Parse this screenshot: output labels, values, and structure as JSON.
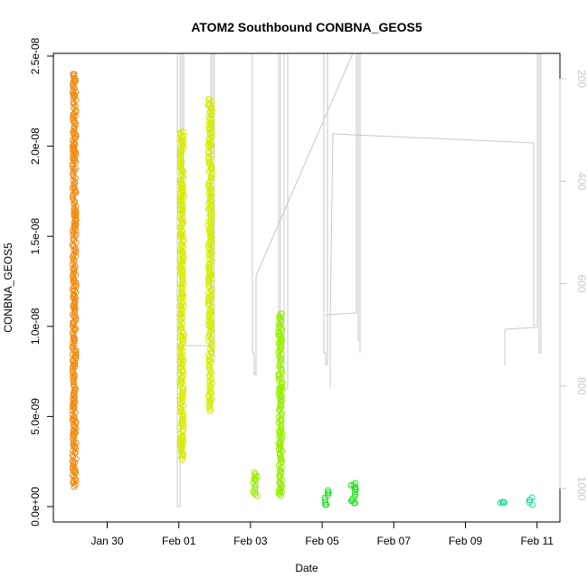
{
  "chart_data": {
    "type": "scatter",
    "title": "ATOM2 Southbound CONBNA_GEOS5",
    "xlabel": "Date",
    "ylabel": "CONBNA_GEOS5",
    "x_ticks": [
      "Jan 30",
      "Feb 01",
      "Feb 03",
      "Feb 05",
      "Feb 07",
      "Feb 09",
      "Feb 11"
    ],
    "y_ticks": [
      "0.0e+00",
      "5.0e-09",
      "1.0e-08",
      "1.5e-08",
      "2.0e-08",
      "2.5e-08"
    ],
    "y_range": [
      0,
      2.5e-08
    ],
    "right_axis_ticks": [
      "200",
      "400",
      "600",
      "800",
      "1000"
    ],
    "right_axis_range": [
      130,
      1040
    ],
    "right_axis_reversed": true,
    "grid": false,
    "series": [
      {
        "color": "#f08a10",
        "clusters": [
          {
            "x": "2016-01-29T02:00",
            "y_min": 1.1e-09,
            "y_max": 2.4e-08
          }
        ]
      },
      {
        "color": "#d6ec00",
        "clusters": [
          {
            "x": "2016-02-01T02:00",
            "y_min": 2.6e-09,
            "y_max": 2.08e-08
          },
          {
            "x": "2016-02-01T21:00",
            "y_min": 5.3e-09,
            "y_max": 2.26e-08
          }
        ]
      },
      {
        "color": "#96ee00",
        "clusters": [
          {
            "x": "2016-02-03T03:00",
            "y_min": 6e-10,
            "y_max": 1.9e-09
          },
          {
            "x": "2016-02-03T20:00",
            "y_min": 6e-10,
            "y_max": 1.07e-08
          }
        ]
      },
      {
        "color": "#22e020",
        "clusters": [
          {
            "x": "2016-02-05T03:00",
            "y_min": 1e-10,
            "y_max": 9e-10
          },
          {
            "x": "2016-02-05T21:00",
            "y_min": 2e-10,
            "y_max": 1.3e-09
          }
        ]
      },
      {
        "color": "#20e0a0",
        "clusters": [
          {
            "x": "2016-02-10T01:00",
            "y_min": 2.5e-10,
            "y_max": 2.5e-10
          },
          {
            "x": "2016-02-10T20:00",
            "y_min": 1e-10,
            "y_max": 5e-10
          }
        ]
      }
    ],
    "altitude_trace_color": "#c8c8c8"
  }
}
